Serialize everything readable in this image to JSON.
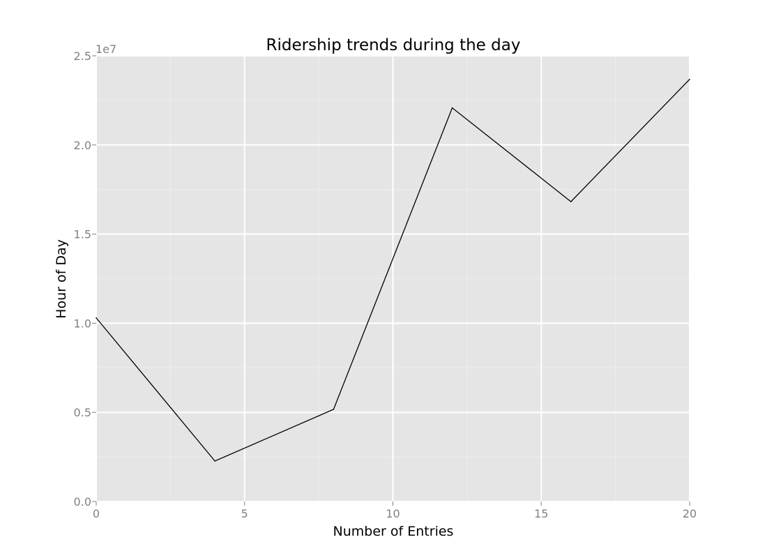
{
  "chart_data": {
    "type": "line",
    "title": "Ridership trends during the day",
    "xlabel": "Number of Entries",
    "ylabel": "Hour of Day",
    "y_offset_label": "1e7",
    "x": [
      0,
      4,
      8,
      12,
      16,
      20
    ],
    "series": [
      {
        "values": [
          10300000,
          2270000,
          5170000,
          22080000,
          16820000,
          23680000
        ]
      }
    ],
    "xlim": [
      0,
      20
    ],
    "ylim": [
      0,
      25000000
    ],
    "x_ticks": [
      {
        "value": 0,
        "label": "0"
      },
      {
        "value": 5,
        "label": "5"
      },
      {
        "value": 10,
        "label": "10"
      },
      {
        "value": 15,
        "label": "15"
      },
      {
        "value": 20,
        "label": "20"
      }
    ],
    "y_ticks": [
      {
        "value": 0,
        "label": "0.0"
      },
      {
        "value": 5000000,
        "label": "0.5"
      },
      {
        "value": 10000000,
        "label": "1.0"
      },
      {
        "value": 15000000,
        "label": "1.5"
      },
      {
        "value": 20000000,
        "label": "2.0"
      },
      {
        "value": 25000000,
        "label": "2.5"
      }
    ],
    "x_minor_ticks": [
      2.5,
      7.5,
      12.5,
      17.5
    ],
    "y_minor_ticks": [
      2500000,
      7500000,
      12500000,
      17500000,
      22500000
    ],
    "grid": true,
    "colors": {
      "panel_background": "#e5e5e5",
      "major_grid": "#ffffff",
      "minor_grid": "#ededed",
      "line": "#000000",
      "tick": "#808080"
    }
  }
}
